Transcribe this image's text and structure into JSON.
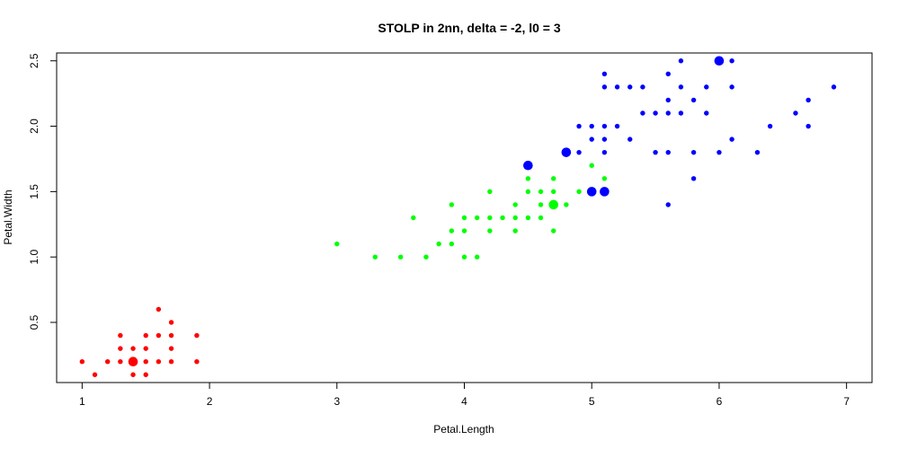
{
  "chart_data": {
    "type": "scatter",
    "title": "STOLP in 2nn, delta = -2, l0 = 3",
    "xlabel": "Petal.Length",
    "ylabel": "Petal.Width",
    "xlim": [
      0.8,
      7.2
    ],
    "ylim": [
      0.04,
      2.56
    ],
    "x_ticks": [
      "1",
      "2",
      "3",
      "4",
      "5",
      "6",
      "7"
    ],
    "y_ticks": [
      "0.5",
      "1.0",
      "1.5",
      "2.0",
      "2.5"
    ],
    "grid": false,
    "legend": "none",
    "series": [
      {
        "color": "#ff0000",
        "points": [
          [
            1.0,
            0.2
          ],
          [
            1.1,
            0.1
          ],
          [
            1.2,
            0.2
          ],
          [
            1.3,
            0.2
          ],
          [
            1.3,
            0.3
          ],
          [
            1.3,
            0.4
          ],
          [
            1.4,
            0.1
          ],
          [
            1.4,
            0.2
          ],
          [
            1.4,
            0.3
          ],
          [
            1.5,
            0.1
          ],
          [
            1.5,
            0.2
          ],
          [
            1.5,
            0.3
          ],
          [
            1.5,
            0.4
          ],
          [
            1.6,
            0.2
          ],
          [
            1.6,
            0.4
          ],
          [
            1.6,
            0.6
          ],
          [
            1.7,
            0.2
          ],
          [
            1.7,
            0.3
          ],
          [
            1.7,
            0.4
          ],
          [
            1.7,
            0.5
          ],
          [
            1.9,
            0.2
          ],
          [
            1.9,
            0.4
          ]
        ],
        "prototypes": [
          [
            1.4,
            0.2
          ]
        ]
      },
      {
        "color": "#00ff00",
        "points": [
          [
            3.0,
            1.1
          ],
          [
            3.3,
            1.0
          ],
          [
            3.5,
            1.0
          ],
          [
            3.6,
            1.3
          ],
          [
            3.7,
            1.0
          ],
          [
            3.8,
            1.1
          ],
          [
            3.9,
            1.1
          ],
          [
            3.9,
            1.2
          ],
          [
            3.9,
            1.4
          ],
          [
            4.0,
            1.0
          ],
          [
            4.0,
            1.2
          ],
          [
            4.0,
            1.3
          ],
          [
            4.1,
            1.0
          ],
          [
            4.1,
            1.3
          ],
          [
            4.2,
            1.2
          ],
          [
            4.2,
            1.3
          ],
          [
            4.2,
            1.5
          ],
          [
            4.3,
            1.3
          ],
          [
            4.4,
            1.2
          ],
          [
            4.4,
            1.3
          ],
          [
            4.4,
            1.4
          ],
          [
            4.5,
            1.3
          ],
          [
            4.5,
            1.5
          ],
          [
            4.5,
            1.6
          ],
          [
            4.6,
            1.3
          ],
          [
            4.6,
            1.4
          ],
          [
            4.6,
            1.5
          ],
          [
            4.7,
            1.2
          ],
          [
            4.7,
            1.5
          ],
          [
            4.7,
            1.6
          ],
          [
            4.8,
            1.4
          ],
          [
            4.9,
            1.5
          ],
          [
            5.0,
            1.7
          ],
          [
            5.1,
            1.6
          ]
        ],
        "prototypes": [
          [
            4.7,
            1.4
          ]
        ]
      },
      {
        "color": "#0000ff",
        "points": [
          [
            4.8,
            1.8
          ],
          [
            4.9,
            1.8
          ],
          [
            4.9,
            2.0
          ],
          [
            5.0,
            1.9
          ],
          [
            5.0,
            2.0
          ],
          [
            5.1,
            1.8
          ],
          [
            5.1,
            1.9
          ],
          [
            5.1,
            2.0
          ],
          [
            5.1,
            2.3
          ],
          [
            5.1,
            2.4
          ],
          [
            5.2,
            2.0
          ],
          [
            5.2,
            2.3
          ],
          [
            5.3,
            1.9
          ],
          [
            5.3,
            2.3
          ],
          [
            5.4,
            2.1
          ],
          [
            5.4,
            2.3
          ],
          [
            5.5,
            1.8
          ],
          [
            5.5,
            2.1
          ],
          [
            5.6,
            1.4
          ],
          [
            5.6,
            1.8
          ],
          [
            5.6,
            2.1
          ],
          [
            5.6,
            2.2
          ],
          [
            5.6,
            2.4
          ],
          [
            5.7,
            2.1
          ],
          [
            5.7,
            2.3
          ],
          [
            5.7,
            2.5
          ],
          [
            5.8,
            1.6
          ],
          [
            5.8,
            1.8
          ],
          [
            5.8,
            2.2
          ],
          [
            5.9,
            2.1
          ],
          [
            5.9,
            2.3
          ],
          [
            6.0,
            1.8
          ],
          [
            6.1,
            1.9
          ],
          [
            6.1,
            2.3
          ],
          [
            6.1,
            2.5
          ],
          [
            6.3,
            1.8
          ],
          [
            6.4,
            2.0
          ],
          [
            6.6,
            2.1
          ],
          [
            6.7,
            2.0
          ],
          [
            6.7,
            2.2
          ],
          [
            6.9,
            2.3
          ]
        ],
        "prototypes": [
          [
            4.5,
            1.7
          ],
          [
            4.8,
            1.8
          ],
          [
            5.0,
            1.5
          ],
          [
            5.1,
            1.5
          ],
          [
            6.0,
            2.5
          ]
        ]
      }
    ]
  }
}
